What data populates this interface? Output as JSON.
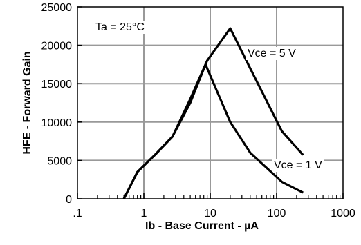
{
  "chart_data": {
    "type": "line",
    "title": "",
    "xlabel": "Ib - Base Current - µA",
    "ylabel": "HFE - Forward Gain",
    "x_scale": "log",
    "xlim": [
      0.1,
      1000
    ],
    "ylim": [
      0,
      25000
    ],
    "x_ticks": [
      ".1",
      "1",
      "10",
      "100",
      "1000"
    ],
    "y_ticks": [
      "0",
      "5000",
      "10000",
      "15000",
      "20000",
      "25000"
    ],
    "grid": true,
    "annotations": {
      "condition": "Ta = 25°C",
      "series_labels": [
        "Vce = 5 V",
        "Vce = 1 V"
      ]
    },
    "series": [
      {
        "name": "Vce = 5 V",
        "x": [
          0.5,
          0.8,
          1.5,
          2.7,
          5,
          9,
          20,
          40,
          120,
          250
        ],
        "y": [
          0,
          3500,
          5800,
          8100,
          13000,
          18000,
          22200,
          17000,
          8800,
          5700
        ]
      },
      {
        "name": "Vce = 1 V",
        "x": [
          0.5,
          0.8,
          1.5,
          2.7,
          5,
          8.5,
          20,
          40,
          120,
          250
        ],
        "y": [
          0,
          3500,
          5800,
          8100,
          12500,
          17500,
          10000,
          6000,
          2200,
          800
        ]
      }
    ]
  }
}
